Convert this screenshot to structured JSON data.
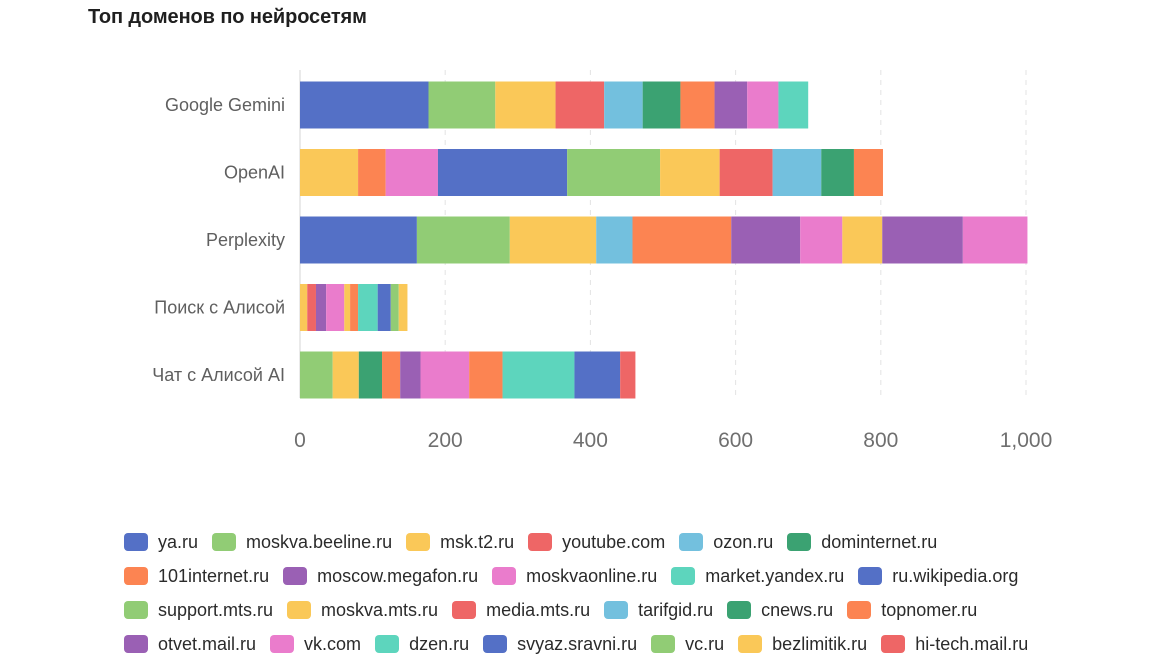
{
  "chart_data": {
    "type": "bar",
    "orientation": "horizontal",
    "stacked": true,
    "title": "Топ доменов по нейросетям",
    "xlabel": "",
    "ylabel": "",
    "xlim": [
      0,
      1000
    ],
    "x_ticks": [
      "0",
      "200",
      "400",
      "600",
      "800",
      "1,000"
    ],
    "x_tick_values": [
      0,
      200,
      400,
      600,
      800,
      1000
    ],
    "grid": "vertical dashed",
    "legend_position": "bottom",
    "categories": [
      "Google Gemini",
      "OpenAI",
      "Perplexity",
      "Поиск с Алисой",
      "Чат с Алисой AI"
    ],
    "bars": [
      {
        "category": "Google Gemini",
        "segments": [
          {
            "domain": "ya.ru",
            "value": 177,
            "color": "#5470c6"
          },
          {
            "domain": "moskva.beeline.ru",
            "value": 92,
            "color": "#91cc75"
          },
          {
            "domain": "msk.t2.ru",
            "value": 83,
            "color": "#fac858"
          },
          {
            "domain": "youtube.com",
            "value": 67,
            "color": "#ee6666"
          },
          {
            "domain": "ozon.ru",
            "value": 53,
            "color": "#73c0de"
          },
          {
            "domain": "dominternet.ru",
            "value": 52,
            "color": "#3ba272"
          },
          {
            "domain": "101internet.ru",
            "value": 47,
            "color": "#fc8452"
          },
          {
            "domain": "moscow.megafon.ru",
            "value": 45,
            "color": "#9a60b4"
          },
          {
            "domain": "moskvaonline.ru",
            "value": 43,
            "color": "#ea7ccc"
          },
          {
            "domain": "market.yandex.ru",
            "value": 41,
            "color": "#5dd5bd"
          }
        ]
      },
      {
        "category": "OpenAI",
        "segments": [
          {
            "domain": "msk.t2.ru",
            "value": 80,
            "color": "#fac858"
          },
          {
            "domain": "101internet.ru",
            "value": 38,
            "color": "#fc8452"
          },
          {
            "domain": "moskvaonline.ru",
            "value": 72,
            "color": "#ea7ccc"
          },
          {
            "domain": "ya.ru",
            "value": 178,
            "color": "#5470c6"
          },
          {
            "domain": "moskva.beeline.ru",
            "value": 128,
            "color": "#91cc75"
          },
          {
            "domain": "moskva.mts.ru",
            "value": 82,
            "color": "#fac858"
          },
          {
            "domain": "youtube.com",
            "value": 73,
            "color": "#ee6666"
          },
          {
            "domain": "ozon.ru",
            "value": 67,
            "color": "#73c0de"
          },
          {
            "domain": "dominternet.ru",
            "value": 45,
            "color": "#3ba272"
          },
          {
            "domain": "topnomer.ru",
            "value": 40,
            "color": "#fc8452"
          }
        ]
      },
      {
        "category": "Perplexity",
        "segments": [
          {
            "domain": "ya.ru",
            "value": 161,
            "color": "#5470c6"
          },
          {
            "domain": "moskva.beeline.ru",
            "value": 128,
            "color": "#91cc75"
          },
          {
            "domain": "msk.t2.ru",
            "value": 119,
            "color": "#fac858"
          },
          {
            "domain": "ozon.ru",
            "value": 50,
            "color": "#73c0de"
          },
          {
            "domain": "101internet.ru",
            "value": 136,
            "color": "#fc8452"
          },
          {
            "domain": "moscow.megafon.ru",
            "value": 95,
            "color": "#9a60b4"
          },
          {
            "domain": "moskvaonline.ru",
            "value": 58,
            "color": "#ea7ccc"
          },
          {
            "domain": "moskva.mts.ru",
            "value": 55,
            "color": "#fac858"
          },
          {
            "domain": "otvet.mail.ru",
            "value": 111,
            "color": "#9a60b4"
          },
          {
            "domain": "vk.com",
            "value": 89,
            "color": "#ea7ccc"
          }
        ]
      },
      {
        "category": "Поиск с Алисой",
        "segments": [
          {
            "domain": "msk.t2.ru",
            "value": 10,
            "color": "#fac858"
          },
          {
            "domain": "youtube.com",
            "value": 12,
            "color": "#ee6666"
          },
          {
            "domain": "moscow.megafon.ru",
            "value": 14,
            "color": "#9a60b4"
          },
          {
            "domain": "moskvaonline.ru",
            "value": 25,
            "color": "#ea7ccc"
          },
          {
            "domain": "bezlimitik.ru",
            "value": 8,
            "color": "#fac858"
          },
          {
            "domain": "topnomer.ru",
            "value": 11,
            "color": "#fc8452"
          },
          {
            "domain": "market.yandex.ru",
            "value": 27,
            "color": "#5dd5bd"
          },
          {
            "domain": "ru.wikipedia.org",
            "value": 18,
            "color": "#5470c6"
          },
          {
            "domain": "vc.ru",
            "value": 11,
            "color": "#91cc75"
          },
          {
            "domain": "bezlimitik.ru",
            "value": 12,
            "color": "#fac858"
          }
        ]
      },
      {
        "category": "Чат с Алисой AI",
        "segments": [
          {
            "domain": "support.mts.ru",
            "value": 45,
            "color": "#91cc75"
          },
          {
            "domain": "msk.t2.ru",
            "value": 36,
            "color": "#fac858"
          },
          {
            "domain": "cnews.ru",
            "value": 32,
            "color": "#3ba272"
          },
          {
            "domain": "101internet.ru",
            "value": 25,
            "color": "#fc8452"
          },
          {
            "domain": "moscow.megafon.ru",
            "value": 28,
            "color": "#9a60b4"
          },
          {
            "domain": "moskvaonline.ru",
            "value": 67,
            "color": "#ea7ccc"
          },
          {
            "domain": "101internet.ru",
            "value": 46,
            "color": "#fc8452"
          },
          {
            "domain": "dzen.ru",
            "value": 99,
            "color": "#5dd5bd"
          },
          {
            "domain": "svyaz.sravni.ru",
            "value": 63,
            "color": "#5470c6"
          },
          {
            "domain": "hi-tech.mail.ru",
            "value": 21,
            "color": "#ee6666"
          }
        ]
      }
    ],
    "legend": [
      [
        {
          "label": "ya.ru",
          "color": "#5470c6"
        },
        {
          "label": "moskva.beeline.ru",
          "color": "#91cc75"
        },
        {
          "label": "msk.t2.ru",
          "color": "#fac858"
        },
        {
          "label": "youtube.com",
          "color": "#ee6666"
        },
        {
          "label": "ozon.ru",
          "color": "#73c0de"
        },
        {
          "label": "dominternet.ru",
          "color": "#3ba272"
        }
      ],
      [
        {
          "label": "101internet.ru",
          "color": "#fc8452"
        },
        {
          "label": "moscow.megafon.ru",
          "color": "#9a60b4"
        },
        {
          "label": "moskvaonline.ru",
          "color": "#ea7ccc"
        },
        {
          "label": "market.yandex.ru",
          "color": "#5dd5bd"
        },
        {
          "label": "ru.wikipedia.org",
          "color": "#5470c6"
        }
      ],
      [
        {
          "label": "support.mts.ru",
          "color": "#91cc75"
        },
        {
          "label": "moskva.mts.ru",
          "color": "#fac858"
        },
        {
          "label": "media.mts.ru",
          "color": "#ee6666"
        },
        {
          "label": "tarifgid.ru",
          "color": "#73c0de"
        },
        {
          "label": "cnews.ru",
          "color": "#3ba272"
        },
        {
          "label": "topnomer.ru",
          "color": "#fc8452"
        }
      ],
      [
        {
          "label": "otvet.mail.ru",
          "color": "#9a60b4"
        },
        {
          "label": "vk.com",
          "color": "#ea7ccc"
        },
        {
          "label": "dzen.ru",
          "color": "#5dd5bd"
        },
        {
          "label": "svyaz.sravni.ru",
          "color": "#5470c6"
        },
        {
          "label": "vc.ru",
          "color": "#91cc75"
        },
        {
          "label": "bezlimitik.ru",
          "color": "#fac858"
        },
        {
          "label": "hi-tech.mail.ru",
          "color": "#ee6666"
        }
      ]
    ]
  }
}
